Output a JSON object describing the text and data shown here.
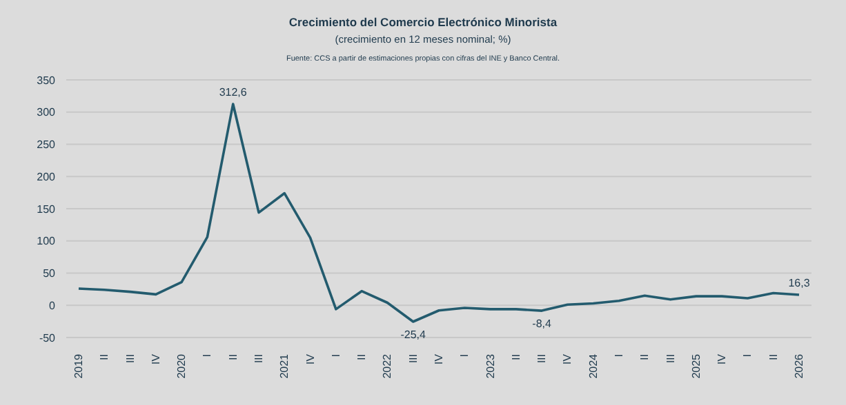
{
  "chart_data": {
    "type": "line",
    "title": "Crecimiento del Comercio Electrónico Minorista",
    "subtitle": "(crecimiento en 12 meses nominal; %)",
    "annotations": [
      "Fuente: CCS a partir de estimaciones propias con cifras del INE y Banco Central."
    ],
    "categories": [
      "2019",
      "II",
      "III",
      "IV",
      "2020",
      "I",
      "II",
      "III",
      "2021",
      "IV",
      "I",
      "II",
      "2022",
      "III",
      "IV",
      "I",
      "2023",
      "II",
      "III",
      "IV",
      "2024",
      "I",
      "II",
      "III",
      "2025",
      "IV",
      "I",
      "II",
      "2026"
    ],
    "series": [
      {
        "color": "#235b6e",
        "values": [
          26,
          24,
          21,
          17,
          36,
          106,
          312.6,
          144,
          174,
          105,
          -6,
          22,
          4,
          -25.4,
          -8,
          -4,
          -6,
          -6,
          -8.4,
          1,
          3,
          7,
          15,
          9,
          14,
          14,
          11,
          19,
          16.3
        ],
        "value_labels": [
          null,
          null,
          null,
          null,
          null,
          null,
          "312,6",
          null,
          null,
          null,
          null,
          null,
          null,
          "-25,4",
          null,
          null,
          null,
          null,
          "-8,4",
          null,
          null,
          null,
          null,
          null,
          null,
          null,
          null,
          null,
          "16,3"
        ]
      }
    ],
    "ylim": [
      -50,
      350
    ],
    "yticks": [
      -50,
      0,
      50,
      100,
      150,
      200,
      250,
      300,
      350
    ],
    "grid": "y",
    "legend": false,
    "marker": "none",
    "line_style": "solid"
  }
}
